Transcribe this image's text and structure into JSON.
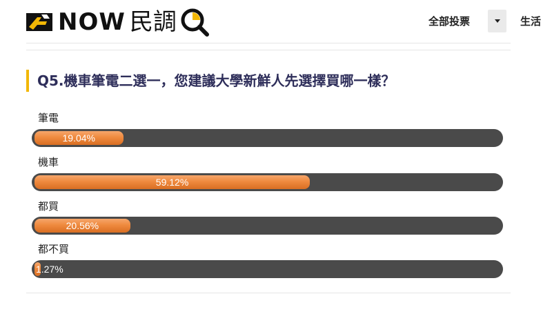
{
  "header": {
    "logo_text": "NOW民調",
    "nav_all": "全部投票",
    "nav_life": "生活"
  },
  "question": "Q5.機車筆電二選一，您建議大學新鮮人先選擇買哪一樣？",
  "options": [
    {
      "label": "筆電",
      "percent_text": "19.04%",
      "percent": 19.04
    },
    {
      "label": "機車",
      "percent_text": "59.12%",
      "percent": 59.12
    },
    {
      "label": "都買",
      "percent_text": "20.56%",
      "percent": 20.56
    },
    {
      "label": "都不買",
      "percent_text": "1.27%",
      "percent": 1.27
    }
  ],
  "colors": {
    "accent_bar": "#f2b705",
    "track": "#4a4a4a",
    "fill": "#ef8a3f",
    "question_text": "#2e2e5a"
  }
}
